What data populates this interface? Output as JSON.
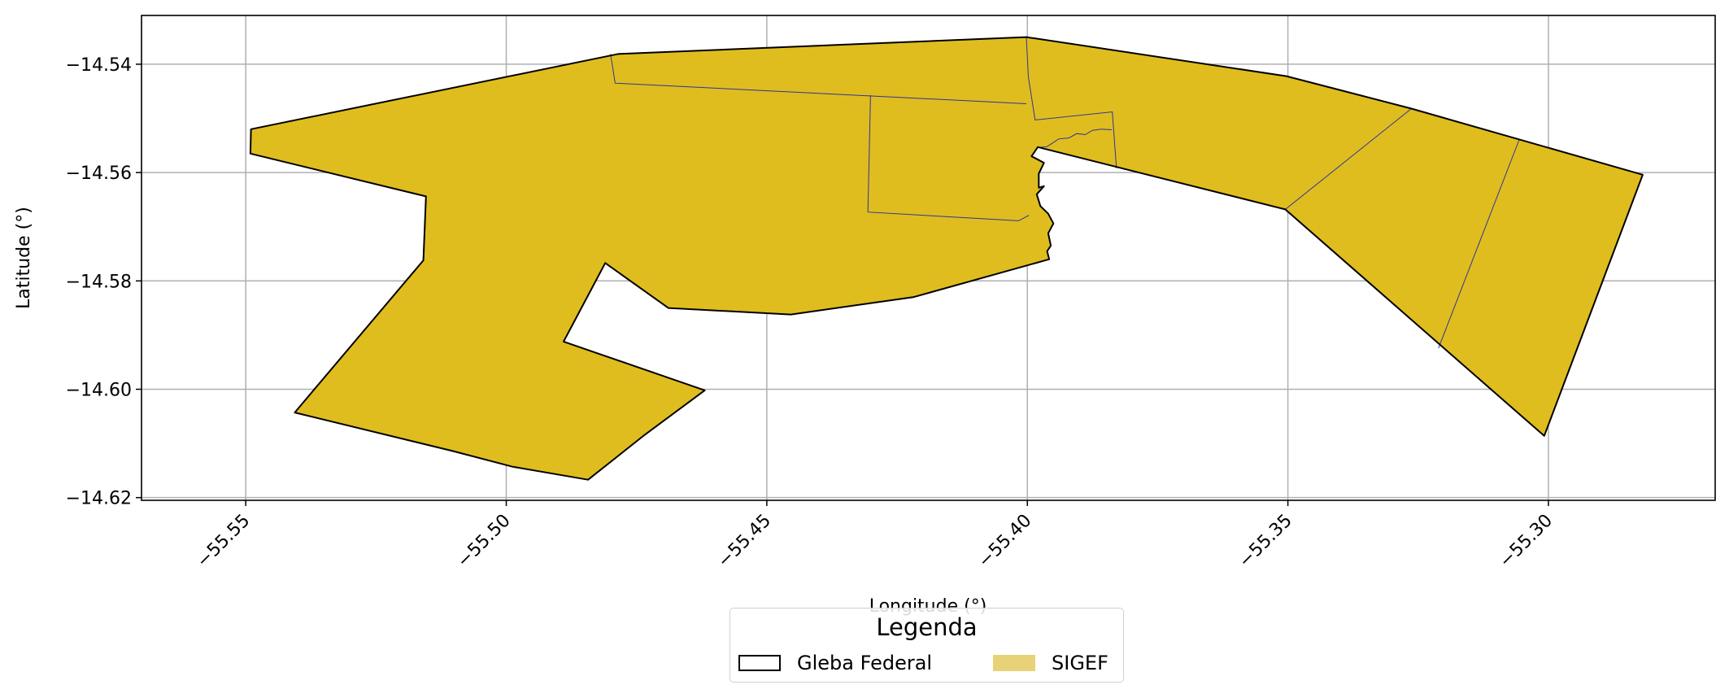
{
  "map": {
    "xlabel": "Longitude (°)",
    "ylabel": "Latitude (°)",
    "x_ticks": [
      {
        "value": -55.55,
        "label": "−55.55"
      },
      {
        "value": -55.5,
        "label": "−55.50"
      },
      {
        "value": -55.45,
        "label": "−55.45"
      },
      {
        "value": -55.4,
        "label": "−55.40"
      },
      {
        "value": -55.35,
        "label": "−55.35"
      },
      {
        "value": -55.3,
        "label": "−55.30"
      }
    ],
    "y_ticks": [
      {
        "value": -14.54,
        "label": "−14.54"
      },
      {
        "value": -14.56,
        "label": "−14.56"
      },
      {
        "value": -14.58,
        "label": "−14.58"
      },
      {
        "value": -14.6,
        "label": "−14.60"
      },
      {
        "value": -14.62,
        "label": "−14.62"
      }
    ],
    "xlim": [
      -55.57,
      -55.268
    ],
    "ylim": [
      -14.6205,
      -14.531
    ],
    "grid": true,
    "colors": {
      "sigef_fill": "#dfbd1f",
      "sigef_legend_fill": "#e8d277",
      "parcel_line": "#2e3596",
      "gleba_outline": "#000000",
      "grid": "#b0b0b0"
    }
  },
  "gleba_outline": [
    [
      -55.549,
      -14.552
    ],
    [
      -55.4785,
      -14.5381
    ],
    [
      -55.4002,
      -14.535
    ],
    [
      -55.3503,
      -14.5422
    ],
    [
      -55.3263,
      -14.5482
    ],
    [
      -55.2819,
      -14.5604
    ],
    [
      -55.3008,
      -14.6086
    ],
    [
      -55.3505,
      -14.5668
    ],
    [
      -55.398,
      -14.5553
    ],
    [
      -55.3992,
      -14.557
    ],
    [
      -55.3968,
      -14.5582
    ],
    [
      -55.3978,
      -14.5602
    ],
    [
      -55.3978,
      -14.5628
    ],
    [
      -55.3968,
      -14.5625
    ],
    [
      -55.3982,
      -14.564
    ],
    [
      -55.3975,
      -14.5662
    ],
    [
      -55.396,
      -14.5676
    ],
    [
      -55.395,
      -14.5694
    ],
    [
      -55.396,
      -14.5712
    ],
    [
      -55.3955,
      -14.5735
    ],
    [
      -55.3962,
      -14.5745
    ],
    [
      -55.3958,
      -14.576
    ],
    [
      -55.4219,
      -14.583
    ],
    [
      -55.4454,
      -14.5862
    ],
    [
      -55.4689,
      -14.585
    ],
    [
      -55.481,
      -14.5767
    ],
    [
      -55.489,
      -14.5912
    ],
    [
      -55.4619,
      -14.6002
    ],
    [
      -55.4734,
      -14.6084
    ],
    [
      -55.4843,
      -14.6167
    ],
    [
      -55.4988,
      -14.6143
    ],
    [
      -55.5103,
      -14.6114
    ],
    [
      -55.5406,
      -14.6043
    ],
    [
      -55.5159,
      -14.5762
    ],
    [
      -55.5154,
      -14.5644
    ],
    [
      -55.5491,
      -14.5565
    ]
  ],
  "parcel_lines": [
    [
      [
        -55.48,
        -14.5381
      ],
      [
        -55.4791,
        -14.5435
      ],
      [
        -55.4002,
        -14.5473
      ]
    ],
    [
      [
        -55.4002,
        -14.535
      ],
      [
        -55.3998,
        -14.5424
      ],
      [
        -55.3985,
        -14.5503
      ],
      [
        -55.3837,
        -14.5488
      ],
      [
        -55.3829,
        -14.5592
      ]
    ],
    [
      [
        -55.4301,
        -14.5457
      ],
      [
        -55.4306,
        -14.5673
      ],
      [
        -55.4017,
        -14.5689
      ],
      [
        -55.3997,
        -14.5679
      ]
    ],
    [
      [
        -55.3981,
        -14.5554
      ],
      [
        -55.3962,
        -14.5552
      ],
      [
        -55.394,
        -14.5538
      ],
      [
        -55.392,
        -14.5536
      ],
      [
        -55.3905,
        -14.5528
      ],
      [
        -55.3889,
        -14.553
      ],
      [
        -55.3875,
        -14.5522
      ],
      [
        -55.3858,
        -14.552
      ],
      [
        -55.3838,
        -14.5521
      ]
    ],
    [
      [
        -55.3505,
        -14.5668
      ],
      [
        -55.3263,
        -14.5482
      ]
    ],
    [
      [
        -55.3211,
        -14.5924
      ],
      [
        -55.3056,
        -14.5539
      ]
    ]
  ],
  "legend": {
    "title": "Legenda",
    "items": [
      {
        "label": "Gleba Federal"
      },
      {
        "label": "SIGEF"
      }
    ]
  }
}
